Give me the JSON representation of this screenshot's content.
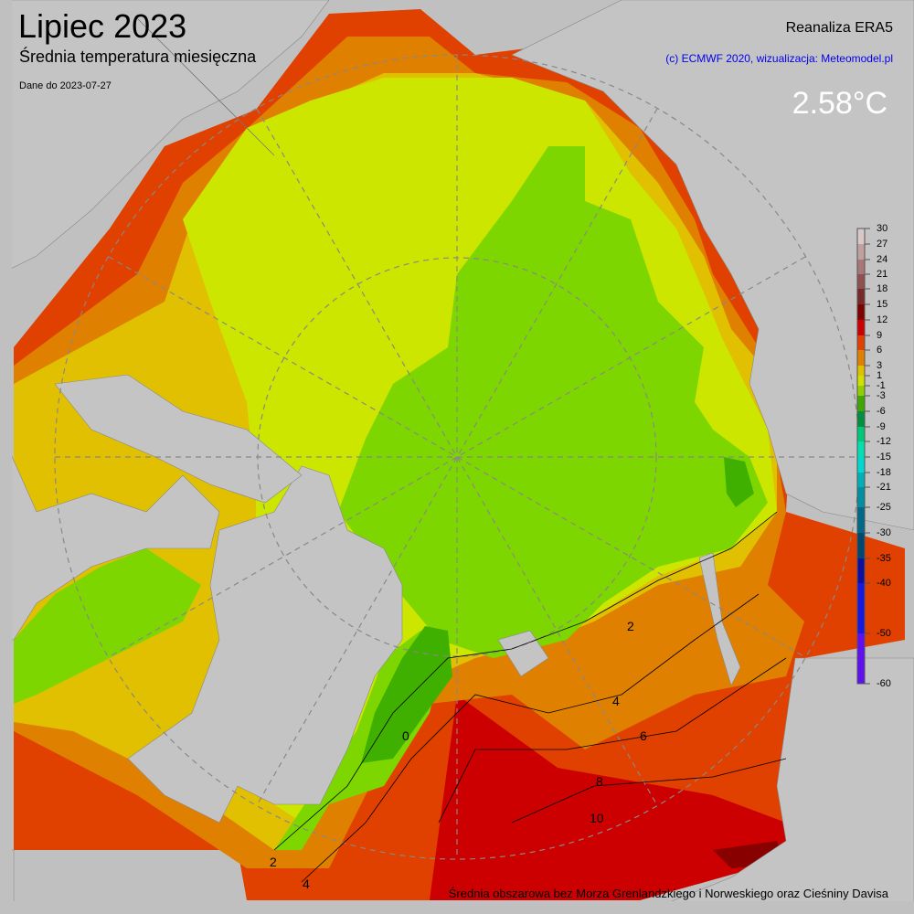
{
  "header": {
    "title": "Lipiec 2023",
    "subtitle": "Średnia temperatura miesięczna",
    "date_note": "Dane do 2023-07-27",
    "source": "Reanaliza ERA5",
    "credit": "(c) ECMWF 2020, wizualizacja: Meteomodel.pl",
    "mean_value": "2.58°C"
  },
  "footer": "Średnia obszarowa bez Morza Grenlandzkiego i Norweskiego oraz Cieśniny Davisa",
  "colorbar": {
    "ticks": [
      "30",
      "27",
      "24",
      "21",
      "18",
      "15",
      "12",
      "9",
      "6",
      "3",
      "1",
      "-1",
      "-3",
      "-6",
      "-9",
      "-12",
      "-15",
      "-18",
      "-21",
      "-25",
      "-30",
      "-35",
      "-40",
      "-50",
      "-60"
    ],
    "colors": [
      "#d8c8c8",
      "#c0a0a0",
      "#a87878",
      "#905050",
      "#782828",
      "#800000",
      "#cc0000",
      "#e04000",
      "#e08000",
      "#e0c000",
      "#d0e000",
      "#90d000",
      "#40a800",
      "#009040",
      "#00c878",
      "#00e0b0",
      "#00d8d0",
      "#00b0b8",
      "#0090a0",
      "#006888",
      "#004870",
      "#1010a0",
      "#1818e0",
      "#6010f0",
      "#601080"
    ]
  },
  "contour_labels": [
    "2",
    "4",
    "6",
    "8",
    "10",
    "0"
  ],
  "colors": {
    "land": "#c4c4c4",
    "background": "#c0c0c0",
    "green_dark": "#40b000",
    "green": "#7ed600",
    "yellow_green": "#cde600",
    "yellow": "#e0c000",
    "orange": "#e08000",
    "red_orange": "#e04000",
    "red": "#cc0000"
  }
}
